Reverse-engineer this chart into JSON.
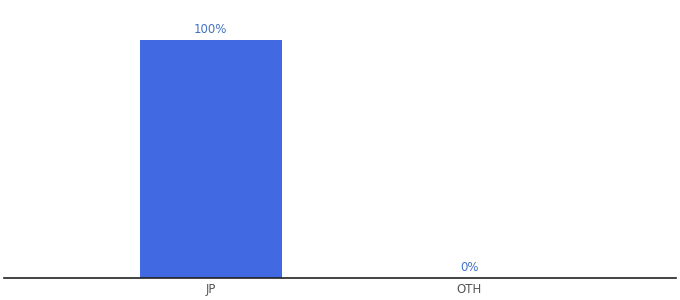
{
  "categories": [
    "JP",
    "OTH"
  ],
  "values": [
    100,
    0
  ],
  "bar_color": "#4169E1",
  "label_color": "#4472c4",
  "axis_line_color": "#222222",
  "tick_label_color": "#555555",
  "background_color": "#ffffff",
  "value_labels": [
    "100%",
    "0%"
  ],
  "bar_width": 0.55,
  "ylim": [
    0,
    115
  ],
  "xlim": [
    -0.3,
    2.3
  ],
  "x_positions": [
    0.5,
    1.5
  ],
  "tick_fontsize": 8.5,
  "label_fontsize": 8.5
}
